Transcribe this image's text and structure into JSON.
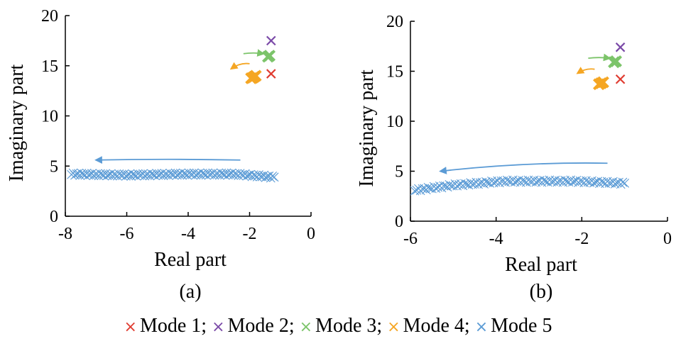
{
  "colors": {
    "mode1": "#e03c31",
    "mode2": "#7b4aa8",
    "mode3": "#7cc46a",
    "mode4": "#f5a623",
    "mode5": "#5b9bd5",
    "axis": "#000000"
  },
  "legend": {
    "items": [
      {
        "marker": "×",
        "label": "Mode 1;",
        "color_key": "mode1"
      },
      {
        "marker": "×",
        "label": "Mode 2;",
        "color_key": "mode2"
      },
      {
        "marker": "×",
        "label": "Mode 3;",
        "color_key": "mode3"
      },
      {
        "marker": "×",
        "label": "Mode 4;",
        "color_key": "mode4"
      },
      {
        "marker": "×",
        "label": "Mode 5",
        "color_key": "mode5"
      }
    ]
  },
  "chart_data": [
    {
      "type": "scatter",
      "panel_label": "(a)",
      "xlabel": "Real part",
      "ylabel": "Imaginary part",
      "xlim": [
        -8,
        0
      ],
      "ylim": [
        0,
        20
      ],
      "xticks": [
        -8,
        -6,
        -4,
        -2,
        0
      ],
      "yticks": [
        0,
        5,
        10,
        15,
        20
      ],
      "grid": false,
      "series": [
        {
          "name": "Mode 1",
          "color_key": "mode1",
          "points": [
            [
              -1.3,
              14.2
            ]
          ]
        },
        {
          "name": "Mode 2",
          "color_key": "mode2",
          "points": [
            [
              -1.3,
              17.5
            ]
          ]
        },
        {
          "name": "Mode 3",
          "color_key": "mode3",
          "points": [
            [
              -1.35,
              16.0
            ],
            [
              -1.4,
              15.9
            ]
          ]
        },
        {
          "name": "Mode 4",
          "color_key": "mode4",
          "points": [
            [
              -1.8,
              14.0
            ],
            [
              -1.85,
              13.9
            ],
            [
              -1.9,
              13.8
            ],
            [
              -1.95,
              13.75
            ]
          ]
        },
        {
          "name": "Mode 5",
          "color_key": "mode5",
          "curve": {
            "x_start": -1.2,
            "x_end": -7.8,
            "count": 120,
            "poly": [
              [
                -7.8,
                4.2
              ],
              [
                -6.0,
                4.1
              ],
              [
                -4.2,
                4.2
              ],
              [
                -2.5,
                4.2
              ],
              [
                -1.2,
                3.9
              ]
            ],
            "jitter": 0.12
          }
        }
      ],
      "arrows": [
        {
          "color_key": "mode5",
          "from": [
            -2.3,
            5.6
          ],
          "to": [
            -7.0,
            5.6
          ]
        },
        {
          "color_key": "mode3",
          "from": [
            -2.2,
            16.2
          ],
          "to": [
            -1.55,
            16.2
          ]
        },
        {
          "color_key": "mode4",
          "from": [
            -2.0,
            15.2
          ],
          "to": [
            -2.6,
            14.7
          ]
        }
      ]
    },
    {
      "type": "scatter",
      "panel_label": "(b)",
      "xlabel": "Real part",
      "ylabel": "Imaginary part",
      "xlim": [
        -6,
        0
      ],
      "ylim": [
        0,
        20
      ],
      "xticks": [
        -6,
        -4,
        -2,
        0
      ],
      "yticks": [
        0,
        5,
        10,
        15,
        20
      ],
      "grid": false,
      "series": [
        {
          "name": "Mode 1",
          "color_key": "mode1",
          "points": [
            [
              -1.1,
              14.2
            ]
          ]
        },
        {
          "name": "Mode 2",
          "color_key": "mode2",
          "points": [
            [
              -1.1,
              17.4
            ]
          ]
        },
        {
          "name": "Mode 3",
          "color_key": "mode3",
          "points": [
            [
              -1.2,
              16.0
            ],
            [
              -1.25,
              15.9
            ]
          ]
        },
        {
          "name": "Mode 4",
          "color_key": "mode4",
          "points": [
            [
              -1.5,
              13.9
            ],
            [
              -1.55,
              13.8
            ],
            [
              -1.6,
              13.7
            ]
          ]
        },
        {
          "name": "Mode 5",
          "color_key": "mode5",
          "curve": {
            "x_start": -1.0,
            "x_end": -5.9,
            "count": 110,
            "poly": [
              [
                -5.9,
                3.1
              ],
              [
                -5.0,
                3.6
              ],
              [
                -3.8,
                4.0
              ],
              [
                -2.2,
                4.0
              ],
              [
                -1.0,
                3.8
              ]
            ],
            "jitter": 0.12
          }
        }
      ],
      "arrows": [
        {
          "color_key": "mode5",
          "from": [
            -1.4,
            5.8
          ],
          "to": [
            -5.3,
            5.0
          ]
        },
        {
          "color_key": "mode3",
          "from": [
            -1.85,
            16.3
          ],
          "to": [
            -1.35,
            16.3
          ]
        },
        {
          "color_key": "mode4",
          "from": [
            -1.7,
            15.2
          ],
          "to": [
            -2.1,
            14.8
          ]
        }
      ]
    }
  ]
}
